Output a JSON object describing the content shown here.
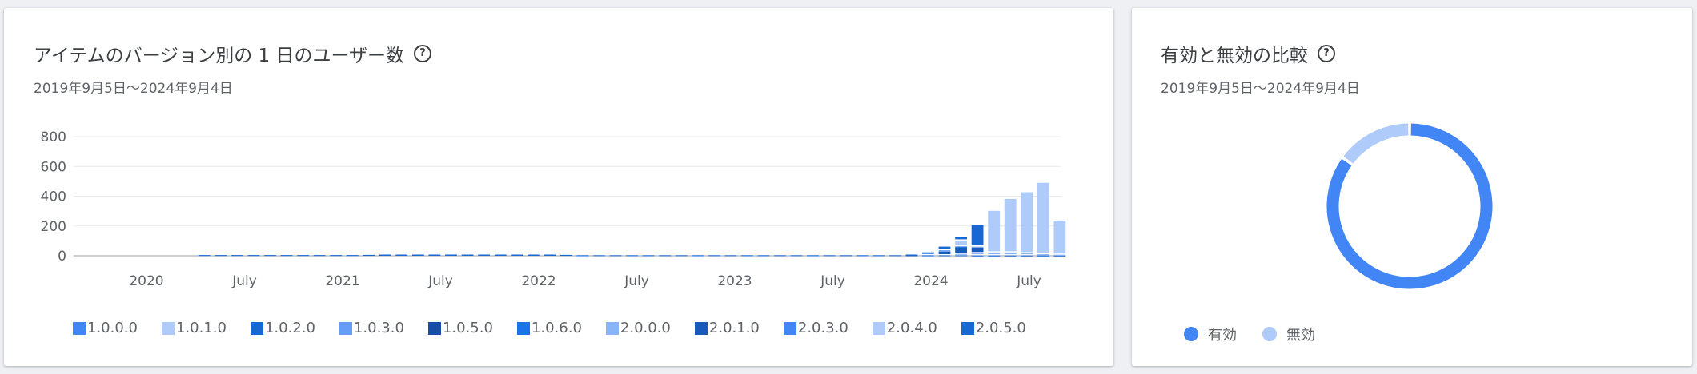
{
  "left_card": {
    "title": "アイテムのバージョン別の 1 日のユーザー数",
    "help_icon": "help-circle-icon",
    "date_range": "2019年9月5日〜2024年9月4日"
  },
  "right_card": {
    "title": "有効と無効の比較",
    "help_icon": "help-circle-icon",
    "date_range": "2019年9月5日〜2024年9月4日"
  },
  "chart_data": [
    {
      "type": "bar",
      "stacked": true,
      "x_tick_labels": [
        "2020",
        "July",
        "2021",
        "July",
        "2022",
        "July",
        "2023",
        "July",
        "2024",
        "July"
      ],
      "y_tick_labels": [
        "800",
        "600",
        "400",
        "200",
        "0"
      ],
      "ylim": [
        0,
        800
      ],
      "grid": true,
      "legend_position": "bottom",
      "categories": [
        "2019-10",
        "2019-11",
        "2019-12",
        "2020-01",
        "2020-02",
        "2020-03",
        "2020-04",
        "2020-05",
        "2020-06",
        "2020-07",
        "2020-08",
        "2020-09",
        "2020-10",
        "2020-11",
        "2020-12",
        "2021-01",
        "2021-02",
        "2021-03",
        "2021-04",
        "2021-05",
        "2021-06",
        "2021-07",
        "2021-08",
        "2021-09",
        "2021-10",
        "2021-11",
        "2021-12",
        "2022-01",
        "2022-02",
        "2022-03",
        "2022-04",
        "2022-05",
        "2022-06",
        "2022-07",
        "2022-08",
        "2022-09",
        "2022-10",
        "2022-11",
        "2022-12",
        "2023-01",
        "2023-02",
        "2023-03",
        "2023-04",
        "2023-05",
        "2023-06",
        "2023-07",
        "2023-08",
        "2023-09",
        "2023-10",
        "2023-11",
        "2023-12",
        "2024-01",
        "2024-02",
        "2024-03",
        "2024-04",
        "2024-05",
        "2024-06",
        "2024-07",
        "2024-08",
        "2024-09"
      ],
      "series": [
        {
          "name": "1.0.0.0",
          "color": "#4285f4",
          "values": [
            0,
            0,
            0,
            0,
            0,
            0,
            0,
            0,
            0,
            0,
            0,
            0,
            0,
            0,
            0,
            0,
            0,
            0,
            0,
            0,
            0,
            0,
            0,
            0,
            0,
            0,
            0,
            0,
            0,
            0,
            0,
            0,
            0,
            0,
            0,
            0,
            0,
            0,
            0,
            0,
            0,
            0,
            0,
            0,
            0,
            0,
            0,
            0,
            0,
            0,
            0,
            0,
            0,
            0,
            0,
            0,
            0,
            0,
            0,
            0
          ]
        },
        {
          "name": "1.0.1.0",
          "color": "#aecbfa",
          "values": [
            0,
            0,
            0,
            0,
            0,
            0,
            0,
            0,
            0,
            0,
            0,
            0,
            0,
            0,
            0,
            0,
            0,
            0,
            0,
            0,
            0,
            0,
            0,
            0,
            0,
            0,
            0,
            0,
            0,
            0,
            0,
            0,
            0,
            0,
            0,
            0,
            0,
            0,
            0,
            0,
            0,
            0,
            0,
            0,
            0,
            0,
            0,
            0,
            0,
            0,
            0,
            0,
            0,
            0,
            0,
            0,
            0,
            0,
            0,
            0
          ]
        },
        {
          "name": "1.0.2.0",
          "color": "#1967d2",
          "values": [
            0,
            0,
            0,
            0,
            0,
            0,
            0,
            5,
            5,
            5,
            5,
            5,
            5,
            5,
            5,
            5,
            5,
            6,
            8,
            8,
            8,
            8,
            8,
            8,
            8,
            8,
            8,
            8,
            8,
            6,
            4,
            4,
            4,
            4,
            4,
            4,
            4,
            4,
            4,
            4,
            4,
            4,
            4,
            4,
            4,
            4,
            4,
            4,
            4,
            4,
            3,
            3,
            3,
            3,
            2,
            2,
            2,
            2,
            2,
            2
          ]
        },
        {
          "name": "1.0.3.0",
          "color": "#669df6",
          "values": [
            0,
            0,
            0,
            0,
            0,
            0,
            0,
            0,
            0,
            0,
            0,
            0,
            0,
            0,
            0,
            0,
            0,
            0,
            0,
            0,
            0,
            0,
            0,
            0,
            0,
            0,
            0,
            0,
            0,
            0,
            0,
            0,
            0,
            0,
            0,
            0,
            0,
            0,
            0,
            0,
            0,
            0,
            0,
            0,
            0,
            0,
            0,
            0,
            0,
            0,
            0,
            0,
            0,
            0,
            0,
            0,
            0,
            0,
            0,
            0
          ]
        },
        {
          "name": "1.0.5.0",
          "color": "#174ea6",
          "values": [
            0,
            0,
            0,
            0,
            0,
            0,
            0,
            0,
            0,
            0,
            0,
            0,
            0,
            0,
            0,
            0,
            0,
            0,
            0,
            0,
            0,
            0,
            0,
            0,
            0,
            0,
            0,
            0,
            0,
            0,
            0,
            0,
            0,
            0,
            0,
            0,
            0,
            0,
            0,
            0,
            0,
            0,
            0,
            0,
            0,
            0,
            0,
            0,
            0,
            0,
            0,
            0,
            0,
            0,
            0,
            0,
            0,
            0,
            0,
            0
          ]
        },
        {
          "name": "1.0.6.0",
          "color": "#1a73e8",
          "values": [
            0,
            0,
            0,
            0,
            0,
            0,
            0,
            0,
            0,
            0,
            0,
            0,
            0,
            0,
            0,
            0,
            0,
            0,
            0,
            0,
            0,
            0,
            0,
            0,
            0,
            0,
            0,
            0,
            0,
            0,
            0,
            0,
            0,
            0,
            0,
            0,
            0,
            0,
            0,
            0,
            0,
            0,
            0,
            0,
            0,
            0,
            0,
            0,
            0,
            0,
            0,
            0,
            0,
            0,
            0,
            0,
            0,
            0,
            0,
            0
          ]
        },
        {
          "name": "2.0.0.0",
          "color": "#8ab4f8",
          "values": [
            0,
            0,
            0,
            0,
            0,
            0,
            0,
            0,
            0,
            0,
            0,
            0,
            0,
            0,
            0,
            0,
            0,
            0,
            0,
            0,
            0,
            0,
            0,
            0,
            0,
            0,
            0,
            0,
            0,
            0,
            0,
            0,
            0,
            0,
            0,
            0,
            0,
            0,
            0,
            0,
            0,
            0,
            0,
            0,
            0,
            0,
            0,
            0,
            0,
            0,
            0,
            0,
            0,
            10,
            15,
            20,
            20,
            15,
            8,
            5
          ]
        },
        {
          "name": "2.0.1.0",
          "color": "#185abc",
          "values": [
            0,
            0,
            0,
            0,
            0,
            0,
            0,
            0,
            0,
            0,
            0,
            0,
            0,
            0,
            0,
            0,
            0,
            0,
            0,
            0,
            0,
            0,
            0,
            0,
            0,
            0,
            0,
            0,
            0,
            0,
            0,
            0,
            0,
            0,
            0,
            0,
            0,
            0,
            0,
            0,
            0,
            0,
            0,
            0,
            0,
            0,
            0,
            0,
            0,
            0,
            0,
            0,
            25,
            45,
            40,
            0,
            0,
            0,
            0,
            0
          ]
        },
        {
          "name": "2.0.3.0",
          "color": "#4285f4",
          "values": [
            0,
            0,
            0,
            0,
            0,
            0,
            0,
            0,
            0,
            0,
            0,
            0,
            0,
            0,
            0,
            0,
            0,
            0,
            0,
            0,
            0,
            0,
            0,
            0,
            0,
            0,
            0,
            0,
            0,
            0,
            0,
            0,
            0,
            0,
            0,
            0,
            0,
            0,
            0,
            0,
            0,
            0,
            0,
            0,
            0,
            0,
            0,
            0,
            0,
            0,
            0,
            15,
            8,
            5,
            0,
            0,
            0,
            0,
            0,
            0
          ]
        },
        {
          "name": "2.0.4.0",
          "color": "#aecbfa",
          "values": [
            0,
            0,
            0,
            0,
            0,
            0,
            0,
            0,
            0,
            0,
            0,
            0,
            0,
            0,
            0,
            0,
            0,
            0,
            0,
            0,
            0,
            0,
            0,
            0,
            0,
            0,
            0,
            0,
            0,
            0,
            0,
            0,
            0,
            0,
            0,
            0,
            0,
            0,
            0,
            0,
            0,
            0,
            0,
            0,
            0,
            0,
            0,
            0,
            0,
            0,
            0,
            0,
            0,
            40,
            5,
            280,
            360,
            410,
            480,
            230
          ]
        },
        {
          "name": "2.0.5.0",
          "color": "#1967d2",
          "values": [
            0,
            0,
            0,
            0,
            0,
            0,
            0,
            0,
            0,
            0,
            0,
            0,
            0,
            0,
            0,
            0,
            0,
            0,
            0,
            0,
            0,
            0,
            0,
            0,
            0,
            0,
            0,
            0,
            0,
            0,
            0,
            0,
            0,
            0,
            0,
            0,
            0,
            0,
            0,
            0,
            0,
            0,
            0,
            0,
            0,
            0,
            0,
            0,
            0,
            0,
            5,
            5,
            25,
            25,
            145,
            0,
            0,
            0,
            0,
            0
          ]
        }
      ]
    },
    {
      "type": "pie",
      "donut": true,
      "legend_position": "bottom",
      "slices": [
        {
          "name": "有効",
          "value": 85,
          "color": "#4285f4"
        },
        {
          "name": "無効",
          "value": 15,
          "color": "#aecbfa"
        }
      ]
    }
  ]
}
